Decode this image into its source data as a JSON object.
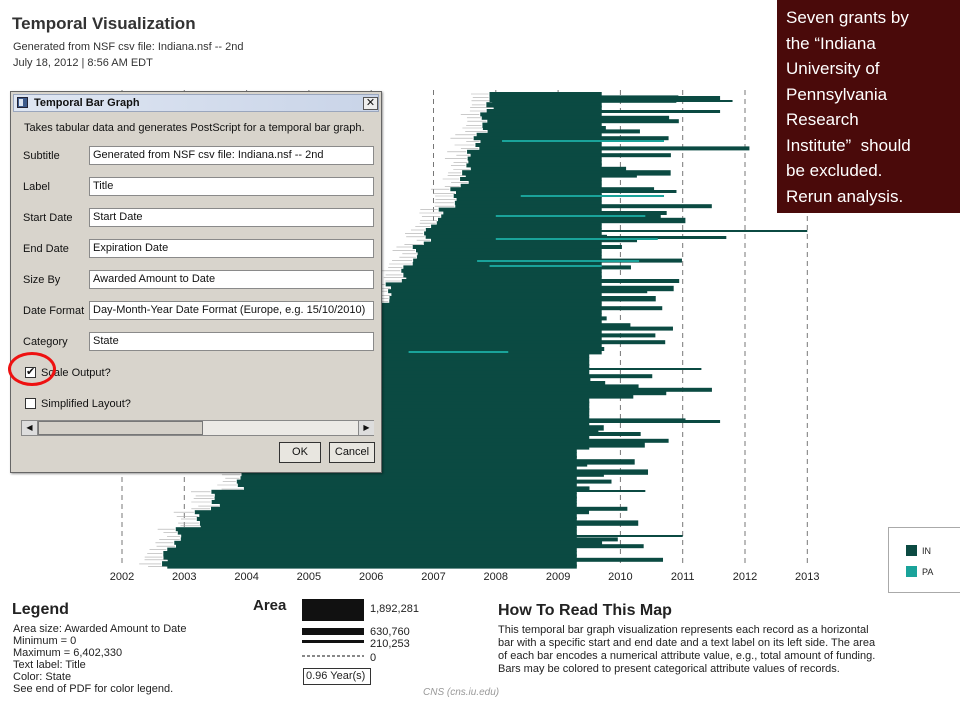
{
  "header": {
    "title": "Temporal Visualization",
    "subtitle": "Generated from NSF csv file: Indiana.nsf -- 2nd",
    "date": "July 18, 2012 | 8:56 AM EDT"
  },
  "callout": {
    "lines": [
      "Seven grants by",
      "the “Indiana",
      "University of",
      "Pennsylvania",
      "Research",
      "Institute”  should",
      "be excluded.",
      "Rerun analysis."
    ]
  },
  "dialog": {
    "title": "Temporal Bar Graph",
    "close_glyph": "✕",
    "description": "Takes tabular data and generates PostScript for a temporal bar graph.",
    "fields": [
      {
        "label": "Subtitle",
        "value": "Generated from NSF csv file: Indiana.nsf -- 2nd"
      },
      {
        "label": "Label",
        "value": "Title"
      },
      {
        "label": "Start Date",
        "value": "Start Date"
      },
      {
        "label": "End Date",
        "value": "Expiration Date"
      },
      {
        "label": "Size By",
        "value": "Awarded Amount to Date"
      },
      {
        "label": "Date Format",
        "value": "Day-Month-Year Date Format (Europe, e.g. 15/10/2010)"
      },
      {
        "label": "Category",
        "value": "State"
      }
    ],
    "checkboxes": [
      {
        "label": "Scale Output?",
        "checked": true,
        "mark": "✔"
      },
      {
        "label": "Simplified Layout?",
        "checked": false,
        "mark": ""
      }
    ],
    "scroll_left": "◀",
    "scroll_right": "▶",
    "ok_label": "OK",
    "cancel_label": "Cancel"
  },
  "chart_data": {
    "type": "bar",
    "subtype": "temporal-horizontal-bars",
    "x_ticks": [
      "2002",
      "2003",
      "2004",
      "2005",
      "2006",
      "2007",
      "2008",
      "2009",
      "2010",
      "2011",
      "2012",
      "2013"
    ],
    "grid": "dashed vertical lines at each year",
    "series": [
      {
        "name": "IN",
        "color": "#0b4a42"
      },
      {
        "name": "PA",
        "color": "#1aa39a"
      }
    ],
    "envelope_start_years": [
      2007.9,
      2007.8,
      2007.7,
      2007.6,
      2007.5,
      2007.3,
      2007.1,
      2006.9,
      2006.7,
      2006.5,
      2006.3,
      2006.1,
      2005.9,
      2005.7,
      2005.5,
      2005.3,
      2005.1,
      2004.9,
      2004.6,
      2004.3,
      2003.9,
      2003.5,
      2003.2,
      2002.9,
      2002.7
    ]
  },
  "category_legend": [
    {
      "label": "IN",
      "color": "#0b4a42"
    },
    {
      "label": "PA",
      "color": "#1aa39a"
    }
  ],
  "legend": {
    "title": "Legend",
    "lines": [
      "Area size: Awarded Amount to Date",
      "Minimum = 0",
      "Maximum = 6,402,330",
      "Text label: Title",
      "Color: State",
      "See end of PDF for color legend."
    ]
  },
  "area": {
    "title": "Area",
    "values": [
      "1,892,281",
      "630,760",
      "210,253",
      "0"
    ],
    "year_scale": "0.96 Year(s)"
  },
  "howto": {
    "title": "How To Read This Map",
    "lines": [
      "This temporal bar graph visualization represents each record as a horizontal",
      "bar with a specific start and end date and a text label on its left side. The area",
      "of each bar encodes a numerical attribute value, e.g., total amount of funding.",
      "Bars may be colored to present categorical attribute values of records."
    ]
  },
  "credit": "CNS (cns.iu.edu)"
}
